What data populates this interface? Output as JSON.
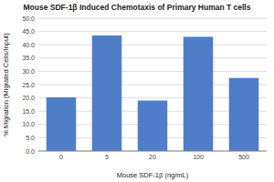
{
  "chart_data": {
    "type": "bar",
    "title": "Mouse SDF-1β Induced Chemotaxis of Primary Human T cells",
    "xlabel": "Mouse SDF-1β (ng/mL)",
    "ylabel": "% Migration (Migrated Cells/Input)",
    "categories": [
      "0",
      "5",
      "20",
      "100",
      "500"
    ],
    "values": [
      20.2,
      43.5,
      19.0,
      43.0,
      27.5
    ],
    "color": "#4f7dc8",
    "ylim": [
      0,
      50
    ],
    "yticks": [
      {
        "value": 0.0,
        "label": "0.0"
      },
      {
        "value": 5.0,
        "label": "5.0"
      },
      {
        "value": 10.0,
        "label": "10.0"
      },
      {
        "value": 15.0,
        "label": "15.0"
      },
      {
        "value": 20.0,
        "label": "20.0"
      },
      {
        "value": 25.0,
        "label": "25.0"
      },
      {
        "value": 30.0,
        "label": "30.0"
      },
      {
        "value": 35.0,
        "label": "35.0"
      },
      {
        "value": 40.0,
        "label": "40.0"
      },
      {
        "value": 45.0,
        "label": "45.0"
      },
      {
        "value": 50.0,
        "label": "50.0"
      }
    ],
    "grid": true
  }
}
